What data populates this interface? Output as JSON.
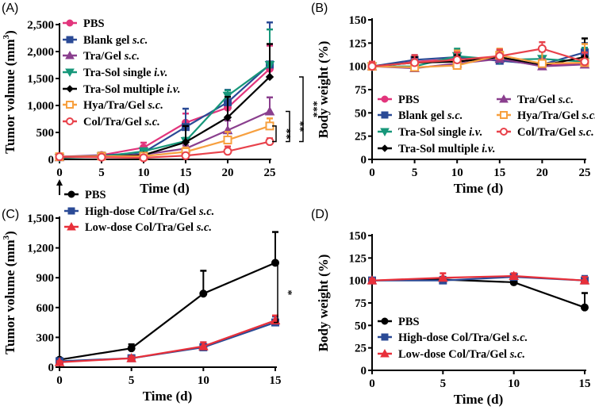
{
  "chart_data": [
    {
      "panel": "(A)",
      "type": "line",
      "xlabel": "Time (d)",
      "ylabel": "Tumor volmue (mm3)",
      "xlim": [
        0,
        25
      ],
      "ylim": [
        0,
        2500
      ],
      "xticks": [
        "0",
        "5",
        "10",
        "15",
        "20",
        "25"
      ],
      "yticks": [
        "0",
        "500",
        "1,000",
        "1,500",
        "2,000",
        "2,500"
      ],
      "x": [
        0,
        5,
        10,
        15,
        20,
        25
      ],
      "significance": [
        "**",
        "**",
        "***"
      ],
      "series": [
        {
          "name": "PBS",
          "color": "#e2357c",
          "marker": "circle",
          "values": [
            50,
            80,
            220,
            680,
            960,
            1680
          ],
          "err": [
            15,
            25,
            90,
            170,
            200,
            430
          ]
        },
        {
          "name": "Blank gel s.c.",
          "color": "#2a4a96",
          "marker": "square",
          "values": [
            50,
            70,
            130,
            600,
            1060,
            1760
          ],
          "err": [
            15,
            20,
            60,
            340,
            230,
            780
          ]
        },
        {
          "name": "Tra/Gel s.c.",
          "color": "#8a3f8e",
          "marker": "triangle",
          "values": [
            40,
            60,
            90,
            200,
            540,
            890
          ],
          "err": [
            10,
            20,
            30,
            60,
            180,
            260
          ]
        },
        {
          "name": "Tra-Sol single i.v.",
          "color": "#17977a",
          "marker": "triangle-down",
          "values": [
            30,
            50,
            150,
            340,
            1180,
            1750
          ],
          "err": [
            10,
            20,
            50,
            60,
            100,
            660
          ]
        },
        {
          "name": "Tra-Sol multiple i.v.",
          "color": "#000000",
          "marker": "diamond",
          "values": [
            40,
            50,
            80,
            320,
            780,
            1530
          ],
          "err": [
            10,
            15,
            30,
            300,
            380,
            610
          ]
        },
        {
          "name": "Hya/Tra/Gel s.c.",
          "color": "#f7a03f",
          "marker": "open-square",
          "values": [
            50,
            60,
            60,
            140,
            360,
            620
          ],
          "err": [
            15,
            20,
            20,
            80,
            150,
            140
          ]
        },
        {
          "name": "Col/Tra/Gel s.c.",
          "color": "#e8424b",
          "marker": "open-circle",
          "values": [
            50,
            40,
            30,
            70,
            150,
            330
          ],
          "err": [
            15,
            15,
            15,
            40,
            90,
            60
          ]
        }
      ]
    },
    {
      "panel": "(B)",
      "type": "line",
      "xlabel": "Time (d)",
      "ylabel": "Body weight (%)",
      "xlim": [
        0,
        25
      ],
      "ylim": [
        0,
        150
      ],
      "xticks": [
        "0",
        "5",
        "10",
        "15",
        "20",
        "25"
      ],
      "yticks": [
        "0",
        "25",
        "50",
        "75",
        "100",
        "125",
        "150"
      ],
      "x": [
        0,
        5,
        10,
        15,
        20,
        25
      ],
      "series": [
        {
          "name": "PBS",
          "color": "#e2357c",
          "marker": "circle",
          "values": [
            100,
            105,
            108,
            107,
            101,
            103
          ],
          "err": [
            5,
            7,
            8,
            6,
            8,
            10
          ]
        },
        {
          "name": "Blank gel s.c.",
          "color": "#2a4a96",
          "marker": "square",
          "values": [
            100,
            107,
            110,
            106,
            102,
            115
          ],
          "err": [
            5,
            5,
            6,
            10,
            6,
            10
          ]
        },
        {
          "name": "Tra-Sol single i.v.",
          "color": "#17977a",
          "marker": "triangle-down",
          "values": [
            100,
            100,
            111,
            107,
            108,
            105
          ],
          "err": [
            5,
            6,
            8,
            6,
            8,
            15
          ]
        },
        {
          "name": "Tra-Sol multiple i.v.",
          "color": "#000000",
          "marker": "diamond",
          "values": [
            100,
            104,
            105,
            110,
            101,
            110
          ],
          "err": [
            5,
            6,
            7,
            8,
            20,
            20
          ]
        },
        {
          "name": "Tra/Gel s.c.",
          "color": "#8a3f8e",
          "marker": "triangle",
          "values": [
            100,
            98,
            103,
            108,
            100,
            102
          ],
          "err": [
            5,
            10,
            14,
            6,
            8,
            12
          ]
        },
        {
          "name": "Hya/Tra/Gel s.c.",
          "color": "#f7a03f",
          "marker": "open-square",
          "values": [
            100,
            99,
            101,
            112,
            103,
            104
          ],
          "err": [
            5,
            8,
            16,
            7,
            17,
            20
          ]
        },
        {
          "name": "Col/Tra/Gel s.c.",
          "color": "#e8424b",
          "marker": "open-circle",
          "values": [
            100,
            104,
            107,
            111,
            119,
            105
          ],
          "err": [
            5,
            8,
            8,
            7,
            7,
            10
          ]
        }
      ]
    },
    {
      "panel": "(C)",
      "type": "line",
      "xlabel": "Time (d)",
      "ylabel": "Tumor volume (mm3)",
      "xlim": [
        0,
        15
      ],
      "ylim": [
        0,
        1500
      ],
      "xticks": [
        "0",
        "5",
        "10",
        "15"
      ],
      "yticks": [
        "0",
        "300",
        "600",
        "900",
        "1,200",
        "1,500"
      ],
      "x": [
        0,
        5,
        10,
        15
      ],
      "significance": [
        "*"
      ],
      "series": [
        {
          "name": "PBS",
          "color": "#000000",
          "marker": "circle",
          "values": [
            75,
            190,
            740,
            1050
          ],
          "err": [
            10,
            40,
            230,
            310
          ]
        },
        {
          "name": "High-dose Col/Tra/Gel s.c.",
          "color": "#2a4a96",
          "marker": "square",
          "values": [
            60,
            90,
            200,
            450
          ],
          "err": [
            10,
            20,
            50,
            60
          ]
        },
        {
          "name": "Low-dose Col/Tra/Gel s.c.",
          "color": "#e8303a",
          "marker": "triangle",
          "values": [
            50,
            90,
            210,
            470
          ],
          "err": [
            10,
            20,
            40,
            50
          ]
        }
      ]
    },
    {
      "panel": "(D)",
      "type": "line",
      "xlabel": "Time (d)",
      "ylabel": "Body weight (%)",
      "xlim": [
        0,
        15
      ],
      "ylim": [
        0,
        150
      ],
      "xticks": [
        "0",
        "5",
        "10",
        "15"
      ],
      "yticks": [
        "0",
        "25",
        "50",
        "75",
        "100",
        "125",
        "150"
      ],
      "x": [
        0,
        5,
        10,
        15
      ],
      "series": [
        {
          "name": "PBS",
          "color": "#000000",
          "marker": "circle",
          "values": [
            100,
            101,
            98,
            70
          ],
          "err": [
            2,
            3,
            3,
            16
          ]
        },
        {
          "name": "High-dose Col/Tra/Gel s.c.",
          "color": "#2a4a96",
          "marker": "square",
          "values": [
            100,
            100,
            104,
            100
          ],
          "err": [
            2,
            4,
            3,
            5
          ]
        },
        {
          "name": "Low-dose Col/Tra/Gel s.c.",
          "color": "#e8303a",
          "marker": "triangle",
          "values": [
            100,
            103,
            105,
            100
          ],
          "err": [
            2,
            5,
            3,
            4
          ]
        }
      ]
    }
  ]
}
